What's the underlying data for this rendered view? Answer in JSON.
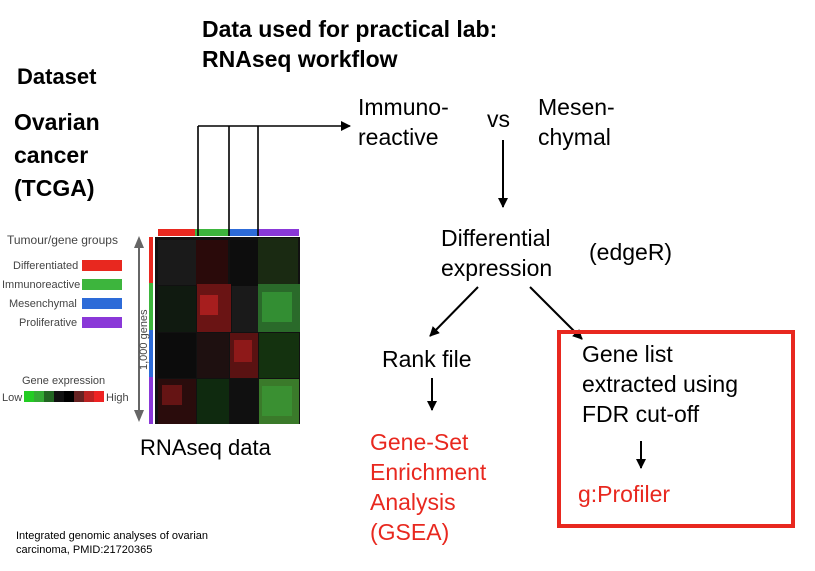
{
  "slide": {
    "title_line1": "Data used for practical lab:",
    "title_line2": "RNAseq workflow"
  },
  "dataset": {
    "label": "Dataset",
    "name_lines": [
      "Ovarian",
      "cancer",
      "(TCGA)"
    ]
  },
  "heatmap_figure": {
    "legend_title": "Tumour/gene groups",
    "groups": [
      {
        "name": "Differentiated",
        "color": "#e8281f"
      },
      {
        "name": "Immunoreactive",
        "color": "#3db53d"
      },
      {
        "name": "Mesenchymal",
        "color": "#2d6bd8"
      },
      {
        "name": "Proliferative",
        "color": "#8a38d8"
      }
    ],
    "axis_label": "1,000 genes",
    "expression_title": "Gene expression",
    "low_label": "Low",
    "high_label": "High",
    "caption": "RNAseq data"
  },
  "workflow": {
    "immunoreactive_lines": [
      "Immuno-",
      "reactive"
    ],
    "vs": "vs",
    "mesenchymal_lines": [
      "Mesen-",
      "chymal"
    ],
    "differential_lines": [
      "Differential",
      "expression"
    ],
    "edger": "(edgeR)",
    "rank_file": "Rank file",
    "gene_list_lines": [
      "Gene list",
      "extracted using",
      "FDR cut-off"
    ],
    "gsea_lines": [
      "Gene-Set",
      "Enrichment",
      "Analysis",
      "(GSEA)"
    ],
    "gprofiler": "g:Profiler",
    "highlight_color": "#e8281f"
  },
  "citation": {
    "line1": "Integrated genomic analyses of ovarian",
    "line2": "carcinoma, PMID:21720365"
  }
}
